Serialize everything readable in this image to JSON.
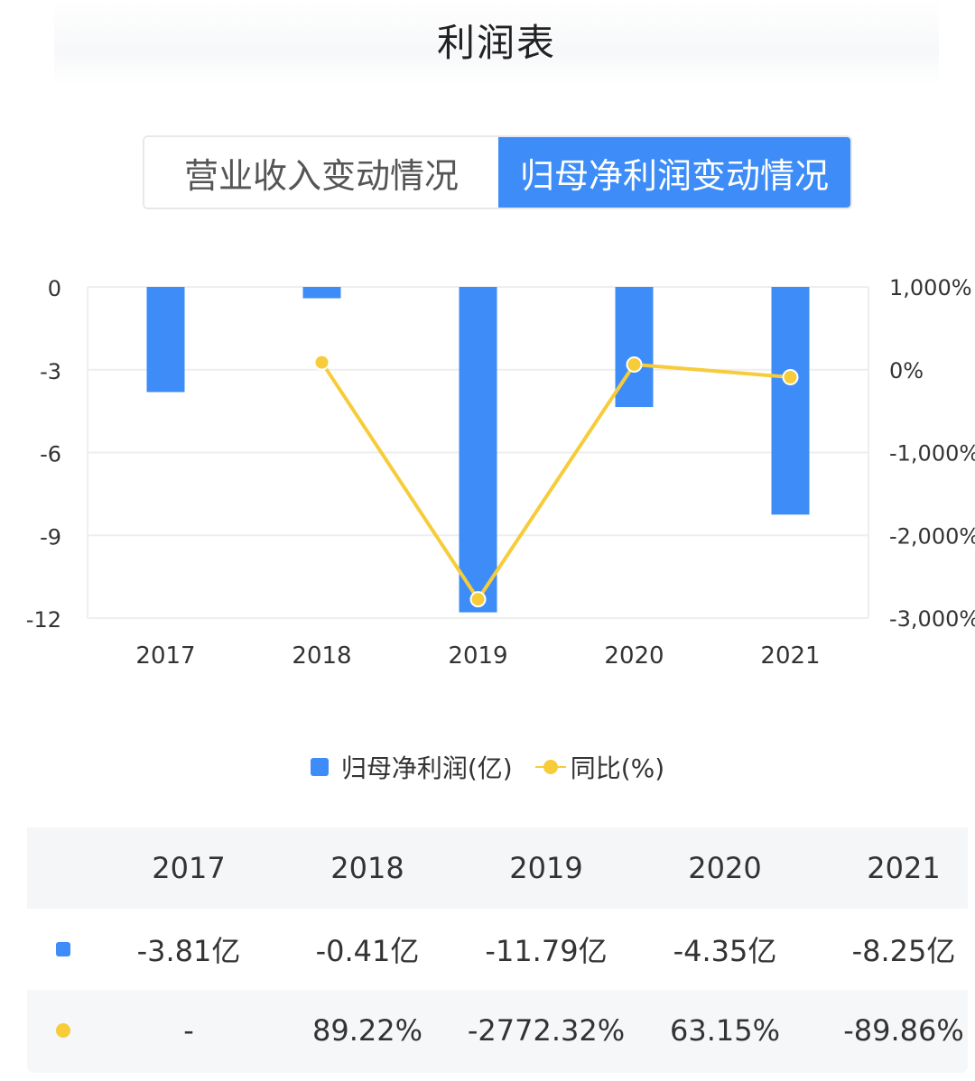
{
  "page_title": "利润表",
  "tabs": [
    {
      "label": "营业收入变动情况",
      "active": false
    },
    {
      "label": "归母净利润变动情况",
      "active": true
    }
  ],
  "colors": {
    "bar": "#3d8cf7",
    "line": "#f7cc3a",
    "grid": "#eeeeee"
  },
  "chart_data": {
    "type": "bar+line",
    "categories": [
      "2017",
      "2018",
      "2019",
      "2020",
      "2021"
    ],
    "series": [
      {
        "name": "归母净利润(亿)",
        "type": "bar",
        "axis": "left",
        "values": [
          -3.81,
          -0.41,
          -11.79,
          -4.35,
          -8.25
        ]
      },
      {
        "name": "同比(%)",
        "type": "line",
        "axis": "right",
        "values": [
          null,
          89.22,
          -2772.32,
          63.15,
          -89.86
        ]
      }
    ],
    "y_left": {
      "ticks": [
        0,
        -3,
        -6,
        -9,
        -12
      ],
      "tick_labels": [
        "0",
        "-3",
        "-6",
        "-9",
        "-12"
      ],
      "ylim": [
        -12,
        0
      ]
    },
    "y_right": {
      "ticks": [
        1000,
        0,
        -1000,
        -2000,
        -3000
      ],
      "tick_labels": [
        "1,000%",
        "0%",
        "-1,000%",
        "-2,000%",
        "-3,000%"
      ],
      "ylim": [
        -3000,
        1000
      ]
    },
    "legend_position": "bottom"
  },
  "legend": [
    {
      "label": "归母净利润(亿)"
    },
    {
      "label": "同比(%)"
    }
  ],
  "table": {
    "years": [
      "2017",
      "2018",
      "2019",
      "2020",
      "2021"
    ],
    "profit_row": [
      "-3.81亿",
      "-0.41亿",
      "-11.79亿",
      "-4.35亿",
      "-8.25亿"
    ],
    "yoy_row": [
      "-",
      "89.22%",
      "-2772.32%",
      "63.15%",
      "-89.86%"
    ]
  }
}
